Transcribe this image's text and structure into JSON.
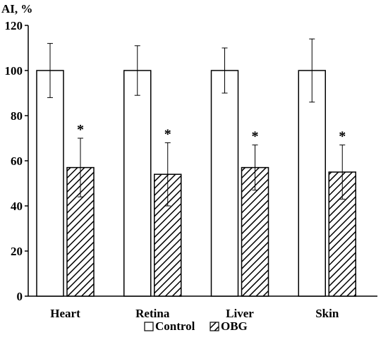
{
  "chart_data": {
    "type": "bar",
    "title": "",
    "xlabel": "",
    "ylabel": "AI, %",
    "ylim": [
      0,
      120
    ],
    "yticks": [
      0,
      20,
      40,
      60,
      80,
      100,
      120
    ],
    "categories": [
      "Heart",
      "Retina",
      "Liver",
      "Skin"
    ],
    "series": [
      {
        "name": "Control",
        "values": [
          100,
          100,
          100,
          100
        ],
        "error": [
          12,
          11,
          10,
          14
        ],
        "pattern": "solid-white",
        "markers": [
          "",
          "",
          "",
          ""
        ]
      },
      {
        "name": "OBG",
        "values": [
          57,
          54,
          57,
          55
        ],
        "error": [
          13,
          14,
          10,
          12
        ],
        "pattern": "diagonal-hatch",
        "markers": [
          "*",
          "*",
          "*",
          "*"
        ]
      }
    ],
    "legend_position": "bottom-center",
    "grid": false
  }
}
